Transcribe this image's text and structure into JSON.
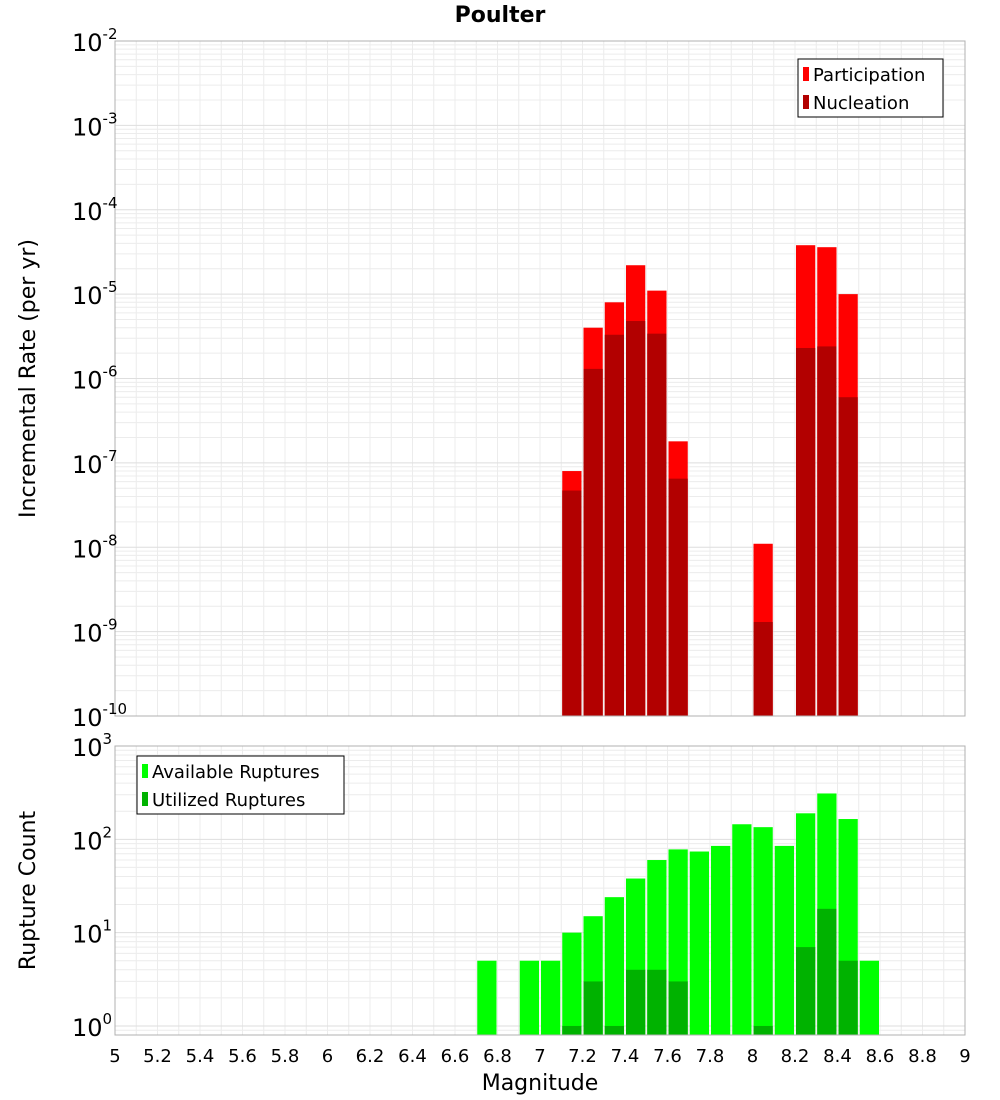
{
  "title": "Poulter",
  "chart_data": [
    {
      "type": "bar",
      "id": "rate",
      "yscale": "log",
      "ylim": [
        1e-10,
        0.01
      ],
      "xlim": [
        5,
        9
      ],
      "ylabel": "Incremental Rate (per yr)",
      "ytick_exponents": [
        -10,
        -9,
        -8,
        -7,
        -6,
        -5,
        -4,
        -3,
        -2
      ],
      "legend": {
        "position": "top-right",
        "entries": [
          "Participation",
          "Nucleation"
        ]
      },
      "bar_width": 0.1,
      "series": [
        {
          "name": "Participation",
          "color": "#ff0000",
          "x": [
            7.1,
            7.2,
            7.3,
            7.4,
            7.5,
            7.6,
            8.0,
            8.2,
            8.3,
            8.4
          ],
          "values": [
            8e-08,
            4e-06,
            8e-06,
            2.2e-05,
            1.1e-05,
            1.8e-07,
            1.1e-08,
            3.8e-05,
            3.6e-05,
            1e-05
          ]
        },
        {
          "name": "Nucleation",
          "color": "#b20000",
          "x": [
            7.1,
            7.2,
            7.3,
            7.4,
            7.5,
            7.6,
            8.0,
            8.2,
            8.3,
            8.4
          ],
          "values": [
            4.7e-08,
            1.3e-06,
            3.3e-06,
            4.8e-06,
            3.4e-06,
            6.5e-08,
            1.3e-09,
            2.3e-06,
            2.4e-06,
            6e-07
          ]
        }
      ]
    },
    {
      "type": "bar",
      "id": "count",
      "yscale": "log",
      "ylim": [
        0.8,
        1000
      ],
      "xlim": [
        5,
        9
      ],
      "ylabel": "Rupture Count",
      "xlabel": "Magnitude",
      "ytick_exponents": [
        0,
        1,
        2,
        3
      ],
      "legend": {
        "position": "top-left",
        "entries": [
          "Available Ruptures",
          "Utilized Ruptures"
        ]
      },
      "bar_width": 0.1,
      "series": [
        {
          "name": "Available Ruptures",
          "color": "#00ff00",
          "x": [
            6.7,
            6.9,
            7.0,
            7.1,
            7.2,
            7.3,
            7.4,
            7.5,
            7.6,
            7.7,
            7.8,
            7.9,
            8.0,
            8.1,
            8.2,
            8.3,
            8.4,
            8.5
          ],
          "values": [
            5,
            5,
            5,
            10,
            15,
            24,
            38,
            60,
            78,
            74,
            85,
            145,
            135,
            85,
            190,
            310,
            165,
            5
          ]
        },
        {
          "name": "Utilized Ruptures",
          "color": "#00b200",
          "x": [
            7.1,
            7.2,
            7.3,
            7.4,
            7.5,
            7.6,
            8.0,
            8.2,
            8.3,
            8.4
          ],
          "values": [
            1,
            3,
            1,
            4,
            4,
            3,
            1,
            7,
            18,
            5
          ]
        }
      ],
      "xticks": [
        "5",
        "5.2",
        "5.4",
        "5.6",
        "5.8",
        "6",
        "6.2",
        "6.4",
        "6.6",
        "6.8",
        "7",
        "7.2",
        "7.4",
        "7.6",
        "7.8",
        "8",
        "8.2",
        "8.4",
        "8.6",
        "8.8",
        "9"
      ]
    }
  ]
}
